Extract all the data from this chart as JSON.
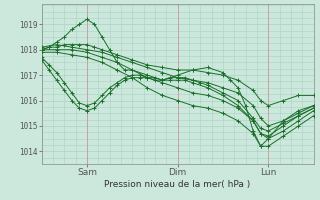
{
  "title": "Pression niveau de la mer( hPa )",
  "ylabel_values": [
    1014,
    1015,
    1016,
    1017,
    1018,
    1019
  ],
  "ylim": [
    1013.5,
    1019.8
  ],
  "xlim": [
    0,
    72
  ],
  "xtick_positions": [
    12,
    36,
    60
  ],
  "xtick_labels": [
    "Sam",
    "Dim",
    "Lun"
  ],
  "bg_color": "#cce8dc",
  "grid_color": "#a8d4c4",
  "line_color": "#1a6e2a",
  "marker_color": "#1a6e2a",
  "background_color": "#cce8dc",
  "lines_data": [
    {
      "x": [
        0,
        2,
        4,
        6,
        8,
        10,
        12,
        14,
        16,
        18,
        20,
        22,
        24,
        28,
        32,
        36,
        40,
        44,
        48,
        50,
        52,
        54,
        56,
        58,
        60,
        64,
        68,
        72
      ],
      "y": [
        1018.0,
        1018.1,
        1018.3,
        1018.5,
        1018.8,
        1019.0,
        1019.2,
        1019.0,
        1018.5,
        1018.0,
        1017.5,
        1017.2,
        1017.2,
        1017.0,
        1016.8,
        1017.0,
        1017.2,
        1017.3,
        1017.1,
        1016.8,
        1016.5,
        1015.8,
        1014.8,
        1014.2,
        1014.5,
        1015.2,
        1015.6,
        1015.8
      ]
    },
    {
      "x": [
        0,
        2,
        4,
        6,
        8,
        10,
        12,
        14,
        16,
        20,
        24,
        28,
        32,
        36,
        40,
        44,
        48,
        52,
        56,
        58,
        60,
        64,
        68,
        72
      ],
      "y": [
        1018.0,
        1018.1,
        1018.1,
        1018.2,
        1018.2,
        1018.2,
        1018.2,
        1018.1,
        1018.0,
        1017.8,
        1017.6,
        1017.4,
        1017.3,
        1017.2,
        1017.2,
        1017.1,
        1017.0,
        1016.8,
        1016.4,
        1016.0,
        1015.8,
        1016.0,
        1016.2,
        1016.2
      ]
    },
    {
      "x": [
        0,
        4,
        8,
        12,
        16,
        20,
        24,
        28,
        32,
        36,
        40,
        44,
        48,
        52,
        56,
        58,
        60,
        64,
        68,
        72
      ],
      "y": [
        1018.1,
        1018.2,
        1018.1,
        1018.0,
        1017.9,
        1017.7,
        1017.5,
        1017.3,
        1017.1,
        1016.9,
        1016.8,
        1016.7,
        1016.5,
        1016.3,
        1015.8,
        1015.3,
        1015.0,
        1015.2,
        1015.5,
        1015.8
      ]
    },
    {
      "x": [
        0,
        4,
        8,
        12,
        16,
        20,
        24,
        28,
        32,
        36,
        40,
        44,
        48,
        52,
        56,
        58,
        60,
        64,
        68,
        72
      ],
      "y": [
        1018.0,
        1018.0,
        1018.0,
        1017.9,
        1017.7,
        1017.5,
        1017.2,
        1016.9,
        1016.7,
        1016.5,
        1016.3,
        1016.2,
        1016.0,
        1015.7,
        1015.2,
        1014.7,
        1014.5,
        1014.8,
        1015.2,
        1015.6
      ]
    },
    {
      "x": [
        0,
        4,
        8,
        12,
        16,
        20,
        24,
        28,
        32,
        36,
        40,
        44,
        48,
        52,
        56,
        58,
        60,
        64,
        68,
        72
      ],
      "y": [
        1017.9,
        1017.9,
        1017.8,
        1017.7,
        1017.5,
        1017.2,
        1016.9,
        1016.5,
        1016.2,
        1016.0,
        1015.8,
        1015.7,
        1015.5,
        1015.2,
        1014.7,
        1014.2,
        1014.2,
        1014.6,
        1015.0,
        1015.4
      ]
    },
    {
      "x": [
        0,
        2,
        4,
        6,
        8,
        10,
        12,
        14,
        16,
        18,
        20,
        22,
        24,
        26,
        28,
        30,
        32,
        34,
        36,
        38,
        40,
        42,
        44,
        48,
        52,
        56,
        58,
        60,
        64,
        68,
        72
      ],
      "y": [
        1017.7,
        1017.4,
        1017.1,
        1016.7,
        1016.3,
        1015.9,
        1015.8,
        1015.9,
        1016.2,
        1016.5,
        1016.7,
        1016.9,
        1017.0,
        1017.0,
        1016.9,
        1016.9,
        1016.8,
        1016.9,
        1016.9,
        1016.9,
        1016.8,
        1016.7,
        1016.6,
        1016.3,
        1016.0,
        1015.3,
        1014.9,
        1014.8,
        1015.1,
        1015.4,
        1015.7
      ]
    },
    {
      "x": [
        0,
        2,
        4,
        6,
        8,
        10,
        12,
        14,
        16,
        18,
        20,
        22,
        24,
        26,
        28,
        30,
        32,
        34,
        36,
        38,
        40,
        44,
        48,
        52,
        56,
        58,
        60,
        64,
        68,
        72
      ],
      "y": [
        1017.6,
        1017.2,
        1016.8,
        1016.4,
        1016.0,
        1015.7,
        1015.6,
        1015.7,
        1016.0,
        1016.3,
        1016.6,
        1016.8,
        1016.9,
        1016.9,
        1016.9,
        1016.8,
        1016.8,
        1016.8,
        1016.8,
        1016.8,
        1016.7,
        1016.5,
        1016.2,
        1015.8,
        1015.2,
        1014.7,
        1014.6,
        1015.0,
        1015.4,
        1015.7
      ]
    }
  ]
}
